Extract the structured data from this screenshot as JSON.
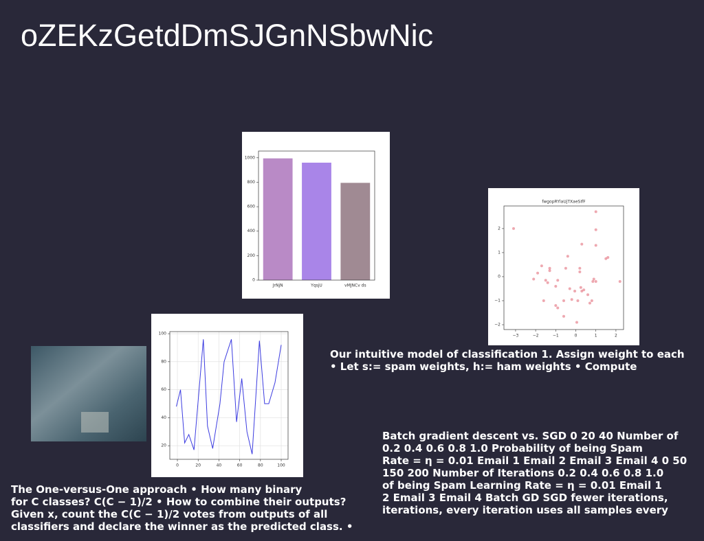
{
  "title": "oZEKzGetdDmSJGnNSbwNic",
  "chart_data": [
    {
      "type": "bar",
      "categories": [
        "JrNjN",
        "YqsjU",
        "vMJNCv ds"
      ],
      "values": [
        995,
        960,
        795
      ],
      "colors": [
        "#b98ac6",
        "#a985e8",
        "#a08a93"
      ],
      "ylim": [
        0,
        1055
      ],
      "yticks": [
        0,
        200,
        400,
        600,
        800,
        1000
      ],
      "grid": false
    },
    {
      "type": "scatter",
      "title": "fwgopRYlaUjTXaeSIfF",
      "color": "#e06070",
      "x": [
        -3.1,
        1.0,
        1.0,
        0.3,
        1.0,
        1.6,
        1.5,
        -0.4,
        -1.7,
        -1.3,
        -1.3,
        -0.5,
        0.2,
        0.2,
        -1.9,
        -2.1,
        -1.5,
        -1.4,
        -0.9,
        0.9,
        1.0,
        0.85,
        2.2,
        -1.0,
        -0.3,
        0.25,
        0.3,
        0.4,
        -0.05,
        0.6,
        -0.2,
        -1.6,
        -0.6,
        0.1,
        0.8,
        0.7,
        -1.0,
        -0.9,
        -0.6,
        0.05
      ],
      "values": [
        2.0,
        2.7,
        1.95,
        1.35,
        1.3,
        0.8,
        0.75,
        0.85,
        0.45,
        0.35,
        0.25,
        0.35,
        0.35,
        0.2,
        0.15,
        -0.1,
        -0.15,
        -0.25,
        -0.15,
        -0.1,
        -0.2,
        -0.2,
        -0.2,
        -0.4,
        -0.5,
        -0.45,
        -0.6,
        -0.55,
        -0.6,
        -0.75,
        -0.95,
        -1.0,
        -1.0,
        -1.0,
        -1.0,
        -1.1,
        -1.2,
        -1.3,
        -1.65,
        -1.9
      ],
      "xlim": [
        -3.58,
        2.38
      ],
      "ylim": [
        -2.2,
        2.94
      ],
      "xticks": [
        {
          "value": -3,
          "label": "−3"
        },
        {
          "value": -2,
          "label": "−2"
        },
        {
          "value": -1,
          "label": "−1"
        },
        0,
        1,
        2
      ],
      "yticks": [
        {
          "value": -2,
          "label": "−2"
        },
        {
          "value": -1,
          "label": "−1"
        },
        0,
        1,
        2
      ],
      "grid": false
    },
    {
      "type": "line",
      "color": "#3b3be0",
      "x": [
        -1,
        3,
        7,
        11,
        16,
        25,
        29,
        34,
        41,
        45,
        52,
        57,
        62,
        67,
        72,
        79,
        84,
        88,
        94,
        100
      ],
      "values": [
        48,
        60,
        22,
        28,
        17,
        96,
        34,
        18,
        50,
        80,
        96,
        37,
        68,
        30,
        14,
        95,
        50,
        50,
        65,
        92
      ],
      "xlim": [
        -7.3,
        106.6
      ],
      "ylim": [
        10.3,
        101.5
      ],
      "xticks": [
        0,
        20,
        40,
        60,
        80,
        100
      ],
      "yticks": [
        20,
        40,
        60,
        80,
        100
      ],
      "grid": true
    }
  ],
  "texts": [
    [
      "Our intuitive model of classification 1. Assign weight to each",
      "• Let s:= spam weights, h:= ham weights • Compute"
    ],
    [
      "Batch gradient descent vs. SGD 0 20 40 Number of",
      "0.2 0.4 0.6 0.8 1.0 Probability of being Spam",
      "Rate = η = 0.01 Email 1 Email 2 Email 3 Email 4 0 50",
      "150 200 Number of Iterations 0.2 0.4 0.6 0.8 1.0",
      "of being Spam Learning Rate = η = 0.01 Email 1",
      "2 Email 3 Email 4 Batch GD SGD fewer iterations,",
      "iterations, every iteration uses all samples every"
    ],
    [
      "The One-versus-One approach • How many binary",
      "for C classes? C(C − 1)/2 • How to combine their outputs?",
      "Given x, count the C(C − 1)/2 votes from outputs of all",
      "classifiers and declare the winner as the predicted class. •"
    ]
  ]
}
